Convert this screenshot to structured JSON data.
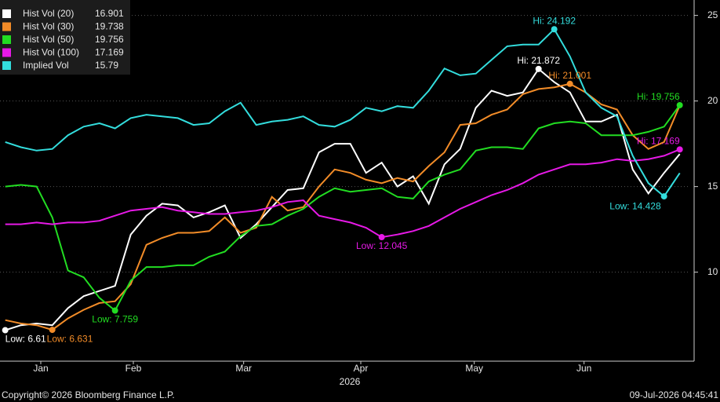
{
  "chart_data": {
    "type": "line",
    "x": [
      1,
      4,
      7,
      10,
      13,
      16,
      19,
      22,
      25,
      28,
      31,
      34,
      37,
      40,
      43,
      46,
      49,
      52,
      55,
      58,
      61,
      64,
      67,
      70,
      73,
      76,
      79,
      82,
      85,
      88,
      91,
      94,
      97,
      100,
      103,
      106,
      109,
      112,
      115,
      118,
      121,
      124,
      127,
      130
    ],
    "xlim": [
      0,
      132
    ],
    "xticks": [
      {
        "value": 7.8,
        "label": "Jan"
      },
      {
        "value": 25.5,
        "label": "Feb"
      },
      {
        "value": 46.6,
        "label": "Mar"
      },
      {
        "value": 69,
        "label": "Apr"
      },
      {
        "value": 90.7,
        "label": "May"
      },
      {
        "value": 111.7,
        "label": "Jun"
      }
    ],
    "xlabel": "2026",
    "ylim": [
      4.8,
      25.9
    ],
    "yticks": [
      10,
      15,
      20,
      25
    ],
    "grid": true,
    "legend": "top-left",
    "series": [
      {
        "name": "Hist Vol (20)",
        "color": "#ffffff",
        "hi_label": "Hi: 21.872",
        "low_label": "Low: 6.61",
        "values": [
          6.61,
          6.9,
          7.0,
          6.9,
          7.9,
          8.6,
          8.9,
          9.2,
          12.2,
          13.3,
          14.0,
          13.9,
          13.2,
          13.5,
          13.9,
          12.0,
          12.8,
          13.8,
          14.8,
          14.9,
          17.0,
          17.5,
          17.5,
          15.8,
          16.4,
          15.0,
          15.6,
          14.0,
          16.3,
          17.2,
          19.6,
          20.6,
          20.3,
          20.5,
          21.872,
          21.1,
          20.5,
          18.8,
          18.8,
          19.2,
          16.0,
          14.6,
          15.8,
          16.901
        ]
      },
      {
        "name": "Hist Vol (30)",
        "color": "#f28c28",
        "hi_label": "Hi: 21.001",
        "low_label": "Low: 6.631",
        "values": [
          7.2,
          7.0,
          6.9,
          6.631,
          7.3,
          7.8,
          8.2,
          8.3,
          9.3,
          11.6,
          12.0,
          12.3,
          12.3,
          12.4,
          13.2,
          12.3,
          12.6,
          14.4,
          13.6,
          13.8,
          15.0,
          16.0,
          15.8,
          15.4,
          15.2,
          15.5,
          15.3,
          16.2,
          17.0,
          18.6,
          18.7,
          19.2,
          19.5,
          20.4,
          20.7,
          20.8,
          21.001,
          20.5,
          19.8,
          19.5,
          18.0,
          17.2,
          17.6,
          19.738
        ]
      },
      {
        "name": "Hist Vol (50)",
        "color": "#22dd22",
        "hi_label": "Hi: 19.756",
        "low_label": "Low: 7.759",
        "values": [
          15.0,
          15.1,
          15.0,
          13.2,
          10.1,
          9.7,
          8.5,
          7.759,
          9.5,
          10.3,
          10.3,
          10.4,
          10.4,
          10.9,
          11.2,
          12.1,
          12.7,
          12.8,
          13.3,
          13.7,
          14.4,
          14.9,
          14.7,
          14.8,
          14.9,
          14.4,
          14.3,
          15.3,
          15.7,
          16.0,
          17.1,
          17.3,
          17.3,
          17.2,
          18.4,
          18.7,
          18.8,
          18.7,
          18.0,
          18.0,
          18.0,
          18.2,
          18.5,
          19.756
        ]
      },
      {
        "name": "Hist Vol (100)",
        "color": "#e619e6",
        "hi_label": "Hi: 17.169",
        "low_label": "Low: 12.045",
        "values": [
          12.8,
          12.8,
          12.9,
          12.8,
          12.9,
          12.9,
          13.0,
          13.3,
          13.6,
          13.7,
          13.8,
          13.6,
          13.5,
          13.4,
          13.4,
          13.5,
          13.6,
          13.8,
          14.1,
          14.2,
          13.3,
          13.1,
          12.9,
          12.6,
          12.045,
          12.2,
          12.4,
          12.7,
          13.2,
          13.7,
          14.1,
          14.5,
          14.8,
          15.2,
          15.7,
          16.0,
          16.3,
          16.3,
          16.4,
          16.6,
          16.5,
          16.6,
          16.8,
          17.169
        ]
      },
      {
        "name": "Implied Vol",
        "color": "#33dddd",
        "hi_label": "Hi: 24.192",
        "low_label": "Low: 14.428",
        "values": [
          17.6,
          17.3,
          17.1,
          17.2,
          18.0,
          18.5,
          18.7,
          18.4,
          19.0,
          19.2,
          19.1,
          19.0,
          18.6,
          18.7,
          19.4,
          19.9,
          18.6,
          18.8,
          18.9,
          19.1,
          18.6,
          18.5,
          18.9,
          19.6,
          19.4,
          19.7,
          19.6,
          20.6,
          21.9,
          21.5,
          21.6,
          22.4,
          23.2,
          23.3,
          23.3,
          24.192,
          22.6,
          20.5,
          19.6,
          19.1,
          16.8,
          15.2,
          14.428,
          15.79
        ]
      }
    ],
    "copyright": "Copyright© 2026 Bloomberg Finance L.P.",
    "timestamp": "09-Jul-2026 04:45:41"
  }
}
